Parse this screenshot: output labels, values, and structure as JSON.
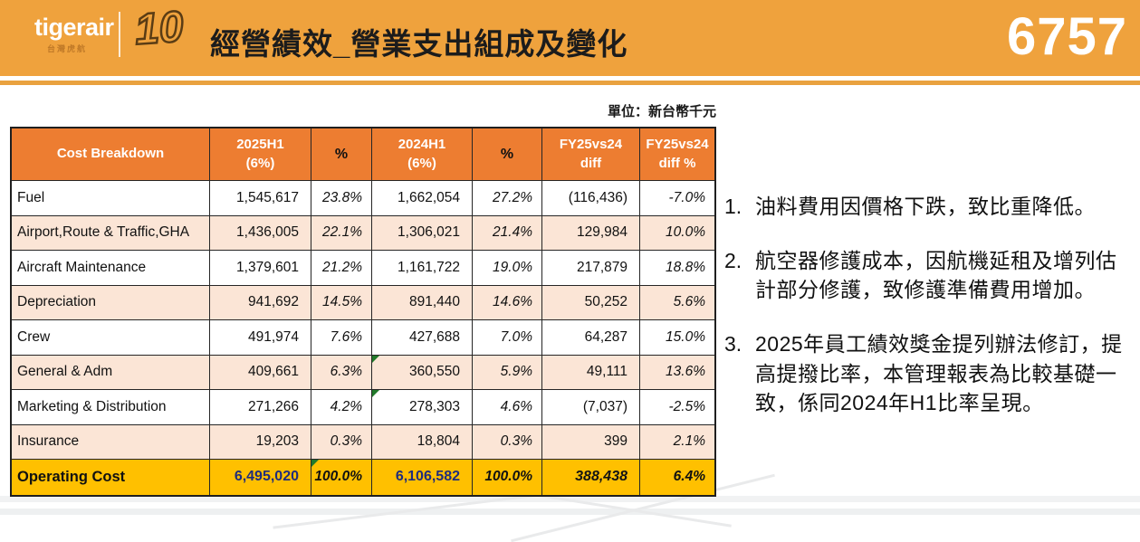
{
  "header": {
    "logo_text": "tigerair",
    "logo_subtext": "台灣虎航",
    "anniversary": "10",
    "title": "經營績效_營業支出組成及變化",
    "stock_code": "6757"
  },
  "unit_label": "單位：新台幣千元",
  "colors": {
    "header_orange": "#efa23d",
    "table_header_orange": "#ed7d31",
    "row_peach": "#fbe5d6",
    "total_gold": "#ffc000",
    "total_value_navy": "#1f2c7c",
    "comment_marker_green": "#217a2b"
  },
  "table": {
    "columns": [
      {
        "line1": "Cost Breakdown",
        "line2": ""
      },
      {
        "line1": "2025H1",
        "line2": "(6%)"
      },
      {
        "line1": "%",
        "line2": ""
      },
      {
        "line1": "2024H1",
        "line2": "(6%)"
      },
      {
        "line1": "%",
        "line2": ""
      },
      {
        "line1": "FY25vs24",
        "line2": "diff"
      },
      {
        "line1": "FY25vs24",
        "line2": "diff %"
      }
    ],
    "rows": [
      {
        "label": "Fuel",
        "v2025": "1,545,617",
        "p2025": "23.8%",
        "v2024": "1,662,054",
        "p2024": "27.2%",
        "diff": "(116,436)",
        "diffp": "-7.0%"
      },
      {
        "label": "Airport,Route & Traffic,GHA",
        "v2025": "1,436,005",
        "p2025": "22.1%",
        "v2024": "1,306,021",
        "p2024": "21.4%",
        "diff": "129,984",
        "diffp": "10.0%"
      },
      {
        "label": "Aircraft Maintenance",
        "v2025": "1,379,601",
        "p2025": "21.2%",
        "v2024": "1,161,722",
        "p2024": "19.0%",
        "diff": "217,879",
        "diffp": "18.8%"
      },
      {
        "label": "Depreciation",
        "v2025": "941,692",
        "p2025": "14.5%",
        "v2024": "891,440",
        "p2024": "14.6%",
        "diff": "50,252",
        "diffp": "5.6%"
      },
      {
        "label": "Crew",
        "v2025": "491,974",
        "p2025": "7.6%",
        "v2024": "427,688",
        "p2024": "7.0%",
        "diff": "64,287",
        "diffp": "15.0%"
      },
      {
        "label": "General & Adm",
        "v2025": "409,661",
        "p2025": "6.3%",
        "v2024": "360,550",
        "p2024": "5.9%",
        "diff": "49,111",
        "diffp": "13.6%"
      },
      {
        "label": "Marketing & Distribution",
        "v2025": "271,266",
        "p2025": "4.2%",
        "v2024": "278,303",
        "p2024": "4.6%",
        "diff": "(7,037)",
        "diffp": "-2.5%"
      },
      {
        "label": "Insurance",
        "v2025": "19,203",
        "p2025": "0.3%",
        "v2024": "18,804",
        "p2024": "0.3%",
        "diff": "399",
        "diffp": "2.1%"
      }
    ],
    "total": {
      "label": "Operating Cost",
      "v2025": "6,495,020",
      "p2025": "100.0%",
      "v2024": "6,106,582",
      "p2024": "100.0%",
      "diff": "388,438",
      "diffp": "6.4%"
    }
  },
  "notes": [
    {
      "num": "1.",
      "text": "油料費用因價格下跌，致比重降低。"
    },
    {
      "num": "2.",
      "text": "航空器修護成本，因航機延租及增列估計部分修護，致修護準備費用增加。"
    },
    {
      "num": "3.",
      "text": "2025年員工績效獎金提列辦法修訂，提高提撥比率，本管理報表為比較基礎一致，係同2024年H1比率呈現。"
    }
  ]
}
